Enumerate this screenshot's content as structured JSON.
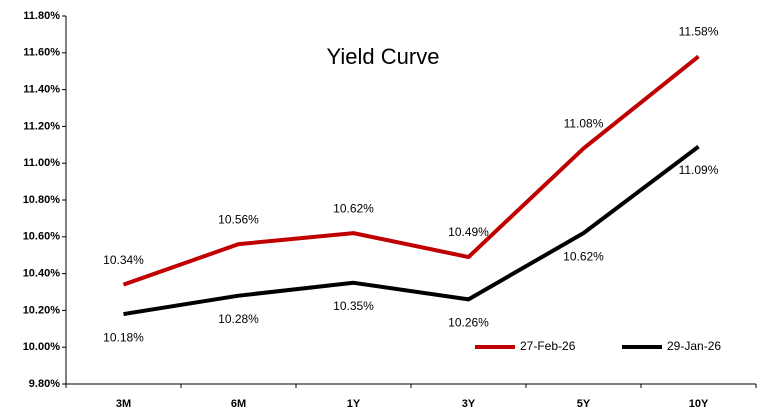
{
  "chart_data": {
    "type": "line",
    "title": "Yield Curve",
    "categories": [
      "3M",
      "6M",
      "1Y",
      "3Y",
      "5Y",
      "10Y"
    ],
    "series": [
      {
        "name": "27-Feb-26",
        "color": "#c00000",
        "values": [
          10.34,
          10.56,
          10.62,
          10.49,
          11.08,
          11.58
        ],
        "value_labels": [
          "10.34%",
          "10.56%",
          "10.62%",
          "10.49%",
          "11.08%",
          "11.58%"
        ]
      },
      {
        "name": "29-Jan-26",
        "color": "#000000",
        "values": [
          10.18,
          10.28,
          10.35,
          10.26,
          10.62,
          11.09
        ],
        "value_labels": [
          "10.18%",
          "10.28%",
          "10.35%",
          "10.26%",
          "10.62%",
          "11.09%"
        ]
      }
    ],
    "ylim": [
      9.8,
      11.8
    ],
    "yticks": [
      {
        "value": 9.8,
        "label": "9.80%"
      },
      {
        "value": 10.0,
        "label": "10.00%"
      },
      {
        "value": 10.2,
        "label": "10.20%"
      },
      {
        "value": 10.4,
        "label": "10.40%"
      },
      {
        "value": 10.6,
        "label": "10.60%"
      },
      {
        "value": 10.8,
        "label": "10.80%"
      },
      {
        "value": 11.0,
        "label": "11.00%"
      },
      {
        "value": 11.2,
        "label": "11.20%"
      },
      {
        "value": 11.4,
        "label": "11.40%"
      },
      {
        "value": 11.6,
        "label": "11.60%"
      },
      {
        "value": 11.8,
        "label": "11.80%"
      }
    ],
    "legend": "lower right"
  }
}
